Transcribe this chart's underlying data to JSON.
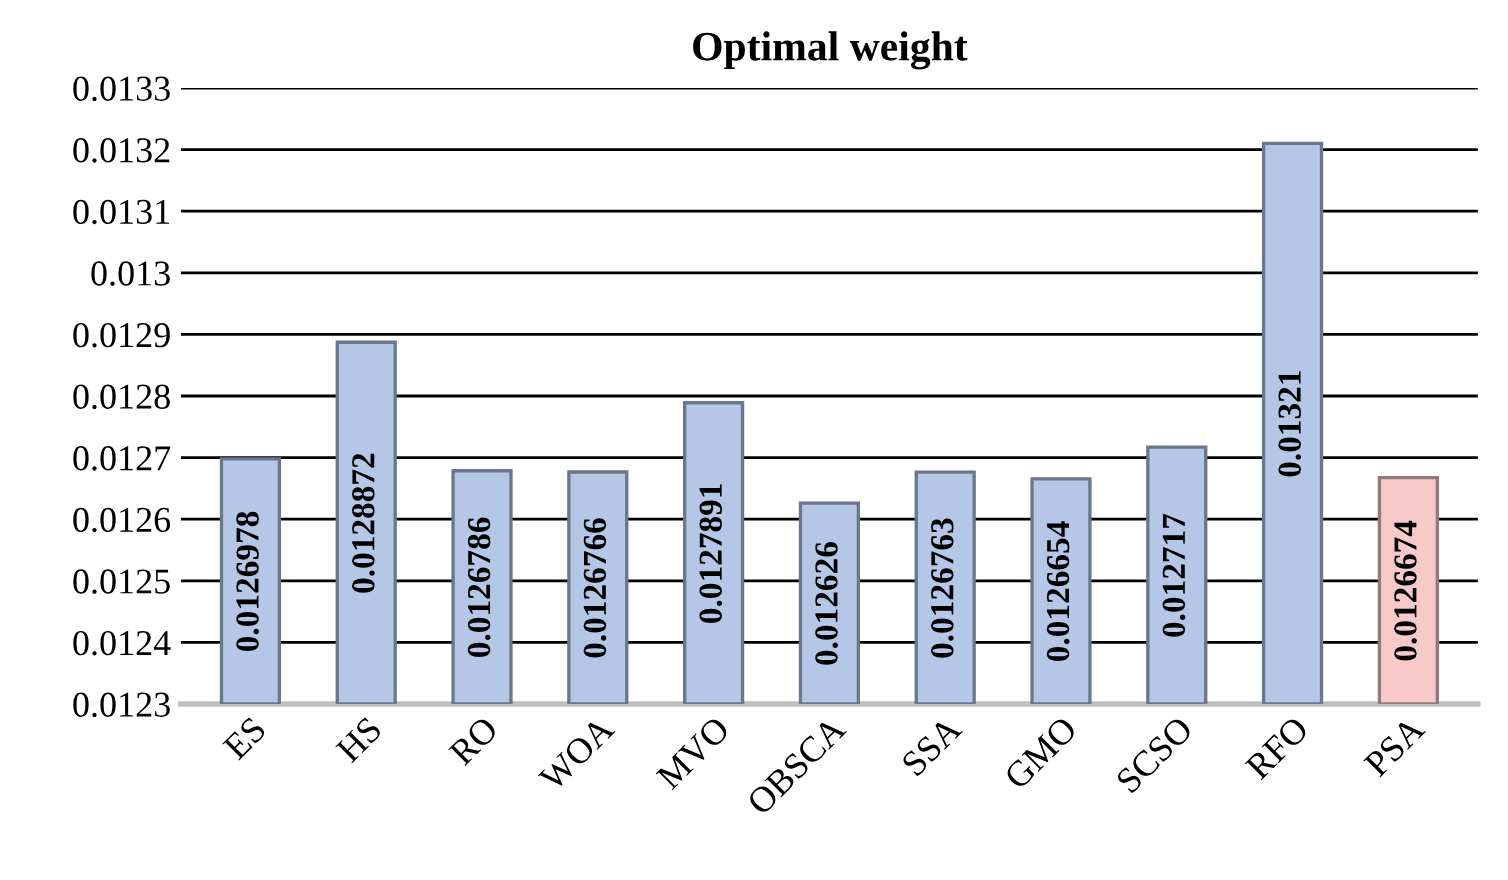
{
  "chart_data": {
    "type": "bar",
    "title": "Optimal weight",
    "categories": [
      "ES",
      "HS",
      "RO",
      "WOA",
      "MVO",
      "OBSCA",
      "SSA",
      "GMO",
      "SCSO",
      "RFO",
      "PSA"
    ],
    "values": [
      0.0126978,
      0.0128872,
      0.0126786,
      0.0126766,
      0.0127891,
      0.012626,
      0.0126763,
      0.0126654,
      0.012717,
      0.01321,
      0.0126674
    ],
    "colors": [
      "#b4c7e7",
      "#b4c7e7",
      "#b4c7e7",
      "#b4c7e7",
      "#b4c7e7",
      "#b4c7e7",
      "#b4c7e7",
      "#b4c7e7",
      "#b4c7e7",
      "#b4c7e7",
      "#f8c9c9"
    ],
    "ylim": [
      0.0123,
      0.0133
    ],
    "yticks": [
      0.0123,
      0.0124,
      0.0125,
      0.0126,
      0.0127,
      0.0128,
      0.0129,
      0.013,
      0.0131,
      0.0132,
      0.0133
    ],
    "grid": "y",
    "data_labels": true
  }
}
